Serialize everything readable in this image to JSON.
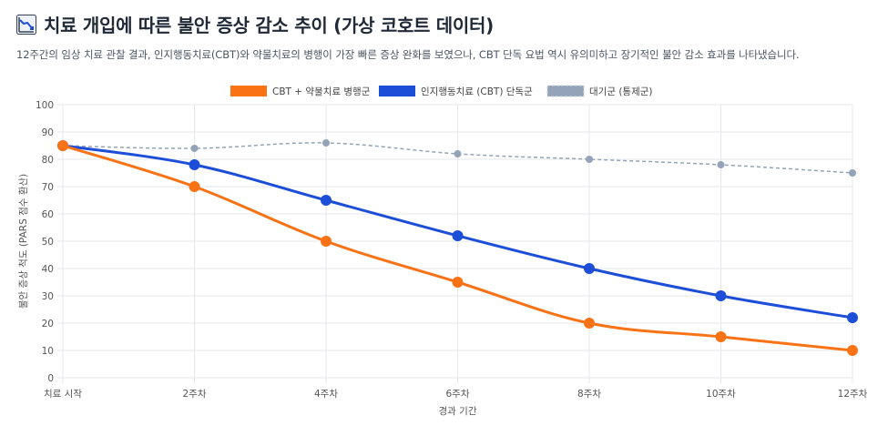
{
  "header": {
    "icon": "chart-decreasing-icon",
    "title": "치료 개입에 따른 불안 증상 감소 추이 (가상 코호트 데이터)",
    "subtitle": "12주간의 임상 치료 관찰 결과, 인지행동치료(CBT)와 약물치료의 병행이 가장 빠른 증상 완화를 보였으나, CBT 단독 요법 역시 유의미하고 장기적인 불안 감소 효과를 나타냈습니다."
  },
  "chart_data": {
    "type": "line",
    "categories": [
      "치료 시작",
      "2주차",
      "4주차",
      "6주차",
      "8주차",
      "10주차",
      "12주차"
    ],
    "xlabel": "경과 기간",
    "ylabel": "불안 증상 척도 (PARS 점수 환산)",
    "ylim": [
      0,
      100
    ],
    "yticks": [
      0,
      10,
      20,
      30,
      40,
      50,
      60,
      70,
      80,
      90,
      100
    ],
    "grid": true,
    "legend_position": "top-center",
    "series": [
      {
        "name": "CBT + 약물치료 병행군",
        "values": [
          85,
          70,
          50,
          35,
          20,
          15,
          10
        ],
        "color": "#f97316",
        "style": "solid",
        "markers": true
      },
      {
        "name": "인지행동치료 (CBT) 단독군",
        "values": [
          85,
          78,
          65,
          52,
          40,
          30,
          22
        ],
        "color": "#1d4ed8",
        "style": "solid",
        "markers": true
      },
      {
        "name": "대기군 (통제군)",
        "values": [
          85,
          84,
          86,
          82,
          80,
          78,
          75
        ],
        "color": "#94a3b8",
        "style": "dashed",
        "markers": true
      }
    ]
  }
}
